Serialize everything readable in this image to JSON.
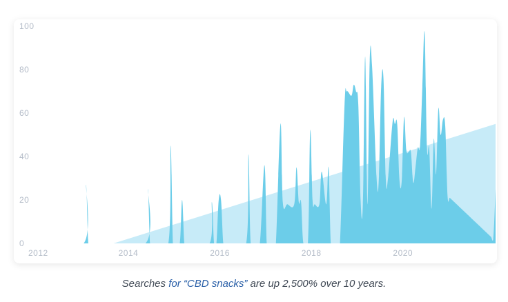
{
  "caption": {
    "pre": "Searches ",
    "highlight": "for “CBD snacks”",
    "post": " are up 2,500% over 10 years."
  },
  "colors": {
    "series": "#6ccde9",
    "trend": "#c7ebf8",
    "tick_text": "#b4bcc8",
    "caption_highlight": "#2b60a8"
  },
  "chart_data": {
    "type": "area",
    "title": "",
    "xlabel": "",
    "ylabel": "",
    "xlim": [
      2012,
      2022
    ],
    "ylim": [
      0,
      100
    ],
    "grid": false,
    "x_ticks": [
      2012,
      2014,
      2016,
      2018,
      2020
    ],
    "y_ticks": [
      0,
      20,
      40,
      60,
      80,
      100
    ],
    "series": [
      {
        "x": [
          2012.0,
          2013.0,
          2013.05,
          2013.1,
          2013.15,
          2013.2,
          2014.35,
          2014.4,
          2014.45,
          2014.5,
          2014.85,
          2014.9,
          2014.95,
          2015.0,
          2015.1,
          2015.15,
          2015.2,
          2015.25,
          2015.75,
          2015.8,
          2015.85,
          2015.9,
          2015.95,
          2016.0,
          2016.05,
          2016.1,
          2016.15,
          2016.2,
          2016.55,
          2016.6,
          2016.65,
          2016.75,
          2016.85,
          2016.95,
          2017.0,
          2017.05,
          2017.15,
          2017.2,
          2017.3,
          2017.35,
          2017.45,
          2017.6,
          2017.65,
          2017.7,
          2017.75,
          2017.8,
          2017.9,
          2017.95,
          2018.0,
          2018.05,
          2018.15,
          2018.2,
          2018.3,
          2018.35,
          2018.4,
          2018.45,
          2018.55,
          2018.6,
          2018.7,
          2018.75,
          2018.85,
          2018.9,
          2018.95,
          2019.0,
          2019.05,
          2019.1,
          2019.15,
          2019.2,
          2019.25,
          2019.3,
          2019.4,
          2019.45,
          2019.5,
          2019.55,
          2019.6,
          2019.65,
          2019.75,
          2019.8,
          2019.85,
          2019.9,
          2019.95,
          2020.0,
          2020.05,
          2020.1,
          2020.15,
          2020.2,
          2020.25,
          2020.3,
          2020.35,
          2020.4,
          2020.45,
          2020.5,
          2020.55,
          2020.6,
          2020.65,
          2020.7,
          2020.75,
          2020.8,
          2020.85,
          2020.9,
          2020.95,
          2021.0,
          2021.05,
          2021.1,
          2021.15,
          2021.2,
          2021.25,
          2021.3,
          2021.35,
          2021.4,
          2021.45,
          2021.5,
          2021.55,
          2021.6,
          2021.65,
          2021.7,
          2021.75,
          2021.8,
          2021.85,
          2021.9,
          2021.95,
          2022.0
        ],
        "values": [
          0,
          0,
          27,
          0,
          0,
          0,
          0,
          25,
          0,
          0,
          0,
          45,
          0,
          0,
          0,
          20,
          0,
          0,
          0,
          19,
          0,
          0,
          20,
          20,
          0,
          0,
          0,
          0,
          0,
          41,
          0,
          0,
          0,
          36,
          0,
          0,
          0,
          0,
          55,
          19,
          18,
          18,
          35,
          19,
          19,
          0,
          0,
          52,
          20,
          18,
          18,
          33,
          18,
          35,
          0,
          0,
          0,
          0,
          64,
          70,
          68,
          73,
          70,
          64,
          20,
          18,
          86,
          18,
          84,
          82,
          30,
          30,
          72,
          76,
          30,
          30,
          56,
          55,
          55,
          29,
          29,
          58,
          43,
          42,
          42,
          28,
          35,
          44,
          45,
          72,
          97,
          44,
          44,
          16,
          48,
          32,
          62,
          50,
          57,
          54,
          22,
          21,
          20,
          19,
          18,
          17,
          16,
          15,
          14,
          13,
          12,
          11,
          10,
          9,
          8,
          7,
          6,
          5,
          4,
          3,
          2,
          25
        ]
      },
      {
        "name": "",
        "x": [
          2013.65,
          2022.0
        ],
        "values": [
          0,
          55
        ]
      }
    ]
  }
}
